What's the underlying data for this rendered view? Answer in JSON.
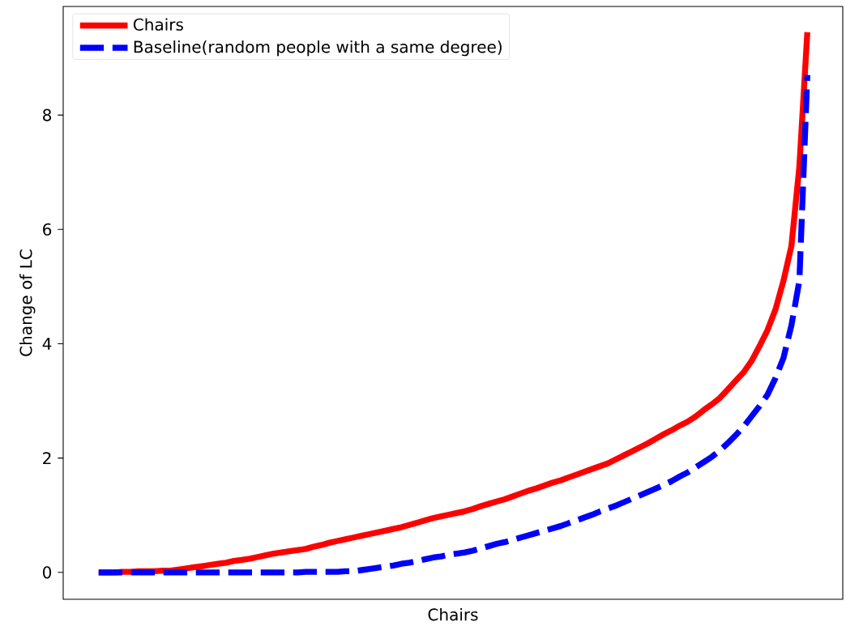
{
  "chart_data": {
    "type": "line",
    "xlabel": "Chairs",
    "ylabel": "Change of LC",
    "categories": [
      null,
      null,
      null,
      null,
      null,
      null,
      null,
      null,
      null,
      null,
      null,
      null,
      null,
      null,
      null,
      null,
      null,
      null,
      null,
      null,
      null,
      null,
      null,
      null,
      null,
      null,
      null,
      null,
      null,
      null,
      null,
      null,
      null,
      null,
      null,
      null,
      null,
      null,
      null,
      null,
      null,
      null,
      null,
      null,
      null,
      null,
      null,
      null,
      null,
      null,
      null,
      null,
      null,
      null,
      null,
      null,
      null,
      null,
      null,
      null,
      null,
      null,
      null,
      null,
      null,
      null,
      null,
      null,
      null,
      null,
      null,
      null,
      null,
      null,
      null,
      null,
      null,
      null,
      null,
      null,
      null,
      null,
      null,
      null,
      null,
      null,
      null,
      null,
      null,
      null
    ],
    "series": [
      {
        "name": "Chairs",
        "color": "#ff0000",
        "line_style": "solid",
        "values": [
          0,
          0,
          0,
          0.01,
          0.01,
          0.02,
          0.02,
          0.02,
          0.03,
          0.03,
          0.05,
          0.07,
          0.09,
          0.11,
          0.13,
          0.15,
          0.17,
          0.2,
          0.22,
          0.24,
          0.27,
          0.3,
          0.33,
          0.35,
          0.37,
          0.39,
          0.41,
          0.45,
          0.48,
          0.52,
          0.55,
          0.58,
          0.61,
          0.64,
          0.67,
          0.7,
          0.73,
          0.76,
          0.79,
          0.83,
          0.87,
          0.91,
          0.95,
          0.98,
          1.01,
          1.04,
          1.07,
          1.11,
          1.16,
          1.2,
          1.24,
          1.28,
          1.33,
          1.38,
          1.43,
          1.47,
          1.52,
          1.57,
          1.61,
          1.66,
          1.71,
          1.76,
          1.81,
          1.86,
          1.91,
          1.98,
          2.05,
          2.12,
          2.19,
          2.26,
          2.34,
          2.42,
          2.49,
          2.57,
          2.64,
          2.73,
          2.84,
          2.94,
          3.05,
          3.2,
          3.35,
          3.5,
          3.7,
          3.96,
          4.24,
          4.6,
          5.1,
          5.71,
          7.1,
          9.45
        ]
      },
      {
        "name": "Baseline(random people with a same degree)",
        "color": "#0000ff",
        "line_style": "dashed",
        "values": [
          0,
          0,
          0,
          0,
          0,
          0,
          0,
          0,
          0,
          0,
          0,
          0,
          0,
          0,
          0,
          0,
          0,
          0,
          0,
          0,
          0,
          0,
          0,
          0,
          0,
          0,
          0.01,
          0.01,
          0.01,
          0.01,
          0.01,
          0.02,
          0.02,
          0.04,
          0.06,
          0.08,
          0.1,
          0.12,
          0.15,
          0.17,
          0.2,
          0.23,
          0.26,
          0.28,
          0.31,
          0.33,
          0.35,
          0.38,
          0.42,
          0.46,
          0.5,
          0.53,
          0.57,
          0.61,
          0.65,
          0.69,
          0.73,
          0.77,
          0.81,
          0.86,
          0.91,
          0.96,
          1.01,
          1.07,
          1.12,
          1.17,
          1.23,
          1.29,
          1.35,
          1.41,
          1.47,
          1.53,
          1.6,
          1.68,
          1.75,
          1.84,
          1.93,
          2.02,
          2.13,
          2.26,
          2.4,
          2.55,
          2.73,
          2.91,
          3.11,
          3.4,
          3.75,
          4.32,
          5.1,
          8.7
        ]
      }
    ],
    "ylim": [
      -0.47,
      9.9
    ],
    "yticks": [
      0,
      2,
      4,
      6,
      8
    ],
    "tick_labels": "y",
    "legend": "top left"
  }
}
